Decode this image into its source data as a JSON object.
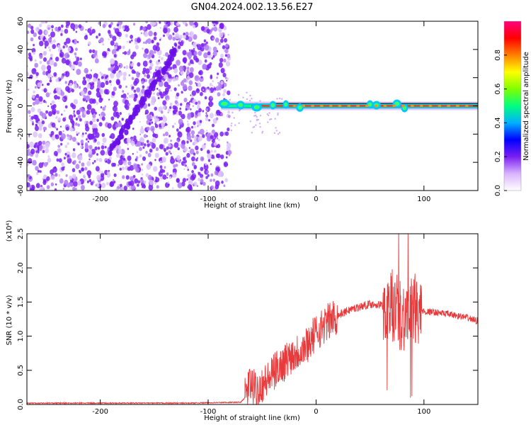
{
  "figure_title": "GN04.2024.002.13.56.E27",
  "colors": {
    "series_line": "#e8393b",
    "spectrogram_dots": "#7a1ff2",
    "text": "#000000"
  },
  "chart_data": [
    {
      "type": "heatmap",
      "title": "GN04.2024.002.13.56.E27",
      "xlabel": "Height of straight line (km)",
      "ylabel": "Frequency (Hz)",
      "xlim": [
        -268,
        150
      ],
      "ylim": [
        -60,
        60
      ],
      "xticks": [
        -200,
        -100,
        0,
        100
      ],
      "xtick_labels": [
        "-200",
        "-100",
        "0",
        "100"
      ],
      "yticks": [
        -60,
        -40,
        -20,
        0,
        20,
        40,
        60
      ],
      "ytick_labels": [
        "-60",
        "-40",
        "-20",
        "0",
        "20",
        "40",
        "60"
      ],
      "noise_region_x": [
        -268,
        -80
      ],
      "dispersive_streak": {
        "x": [
          -190,
          -130
        ],
        "y": [
          -32,
          40
        ]
      },
      "tone_frequency_hz": 0,
      "tone_x_range": [
        -88,
        150
      ],
      "colorbar": {
        "label": "Normalized spectral amplitude",
        "range": [
          0,
          1
        ],
        "ticks": [
          0.0,
          0.2,
          0.4,
          0.6,
          0.8
        ],
        "tick_labels": [
          "0.0",
          "0.2",
          "0.4",
          "0.6",
          "0.8"
        ],
        "colors": [
          "#ffffff",
          "#d9b3ff",
          "#7a1ff2",
          "#0000ff",
          "#00b0ff",
          "#00ff80",
          "#80ff00",
          "#ffff00",
          "#ff8000",
          "#ff0000",
          "#ff0080"
        ]
      }
    },
    {
      "type": "line",
      "xlabel": "Height of straight line (km)",
      "ylabel": "SNR (10 * v/v)",
      "scale_label": "(x10⁴)",
      "xlim": [
        -268,
        150
      ],
      "ylim": [
        0,
        2.5
      ],
      "xticks": [
        -200,
        -100,
        0,
        100
      ],
      "xtick_labels": [
        "-200",
        "-100",
        "0",
        "100"
      ],
      "yticks": [
        0,
        0.5,
        1.0,
        1.5,
        2.0,
        2.5
      ],
      "ytick_labels": [
        "0.0",
        "0.5",
        "1.0",
        "1.5",
        "2.0",
        "2.5"
      ],
      "series": [
        {
          "x": [
            -268,
            -200,
            -120,
            -80,
            -70,
            -66,
            -62,
            -58,
            -55,
            -50,
            -45,
            -40,
            -35,
            -30,
            -25,
            -20,
            -15,
            -10,
            -5,
            0,
            10,
            20,
            30,
            40,
            50,
            60,
            65,
            70,
            75,
            80,
            85,
            88,
            90,
            95,
            100,
            110,
            120,
            130,
            140,
            150
          ],
          "y": [
            0.02,
            0.02,
            0.02,
            0.03,
            0.03,
            0.1,
            0.3,
            0.25,
            0.2,
            0.3,
            0.35,
            0.45,
            0.55,
            0.6,
            0.7,
            0.75,
            0.8,
            0.85,
            0.95,
            1.05,
            1.2,
            1.3,
            1.38,
            1.43,
            1.47,
            1.46,
            1.4,
            1.45,
            1.4,
            1.3,
            1.3,
            1.3,
            1.35,
            1.4,
            1.36,
            1.35,
            1.33,
            1.3,
            1.27,
            1.22
          ]
        }
      ]
    }
  ]
}
